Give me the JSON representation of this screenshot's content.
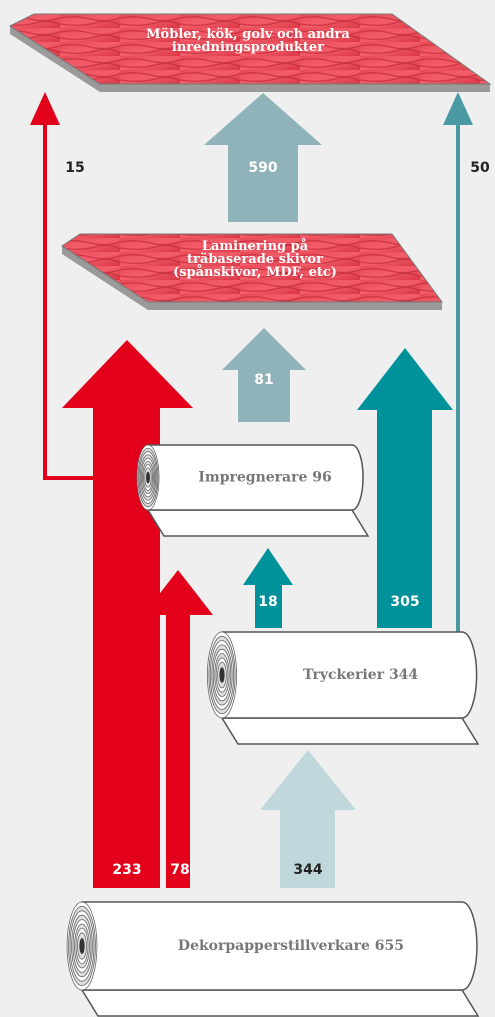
{
  "boards": [
    {
      "lines": [
        "Möbler, kök, golv och andra",
        "inredningsprodukter"
      ]
    },
    {
      "lines": [
        "Laminering på",
        "träbaserade skivor",
        "(spånskivor, MDF, etc)"
      ]
    }
  ],
  "rolls": [
    {
      "label": "Impregnerare 96"
    },
    {
      "label": "Tryckerier 344"
    },
    {
      "label": "Dekorpapperstillverkare 655"
    }
  ],
  "flows": [
    {
      "value": 15
    },
    {
      "value": 590
    },
    {
      "value": 50
    },
    {
      "value": 81
    },
    {
      "value": 18
    },
    {
      "value": 305
    },
    {
      "value": 233
    },
    {
      "value": 78
    },
    {
      "value": 344
    }
  ]
}
